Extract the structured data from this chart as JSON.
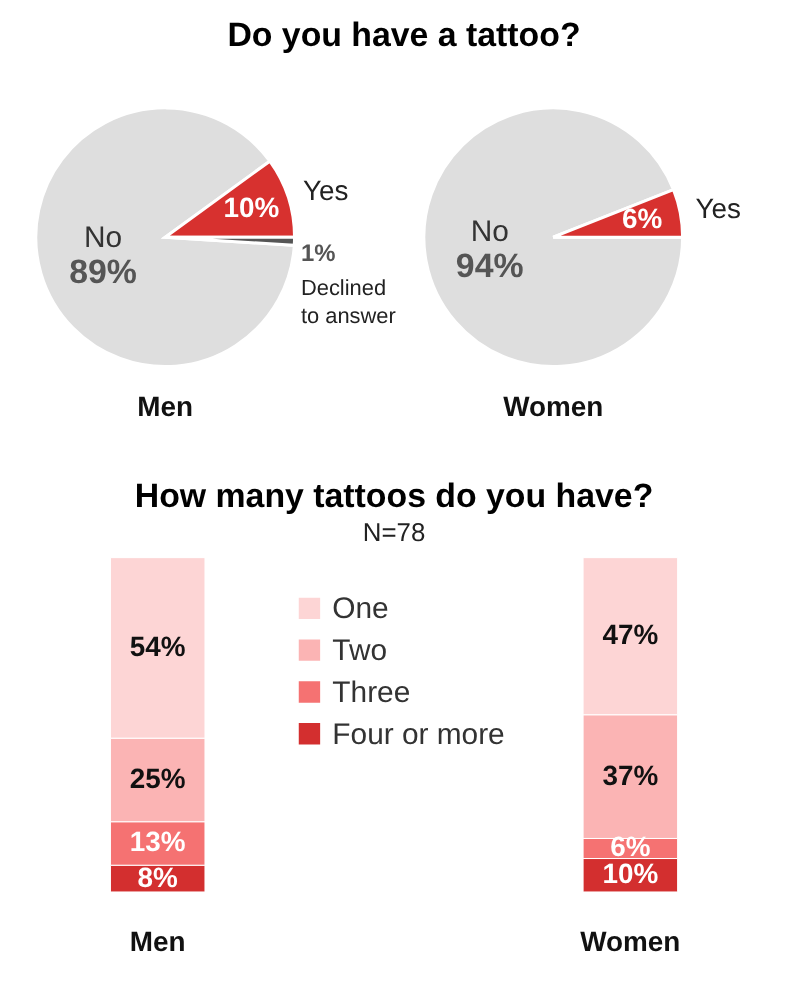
{
  "chart_data": [
    {
      "type": "pie",
      "title": "Do you have a tattoo?",
      "xlabel": "Men",
      "categories": [
        "No",
        "Yes",
        "Declined to answer"
      ],
      "values": [
        89,
        10,
        1
      ],
      "colors": [
        "#dedede",
        "#d7312f",
        "#555555"
      ],
      "value_labels": [
        "89%",
        "10%",
        "1%"
      ]
    },
    {
      "type": "pie",
      "xlabel": "Women",
      "categories": [
        "No",
        "Yes"
      ],
      "values": [
        94,
        6
      ],
      "colors": [
        "#dedede",
        "#d7312f"
      ],
      "value_labels": [
        "94%",
        "6%"
      ]
    },
    {
      "type": "bar",
      "title": "How many tattoos do you have?",
      "subtitle": "N=78",
      "categories": [
        "Men",
        "Women"
      ],
      "stacked": true,
      "legend": "top",
      "series": [
        {
          "name": "Four or more",
          "color": "#d32f2f",
          "values": [
            8,
            10
          ],
          "value_labels": [
            "8%",
            "10%"
          ]
        },
        {
          "name": "Three",
          "color": "#f57272",
          "values": [
            13,
            6
          ],
          "value_labels": [
            "13%",
            "6%"
          ]
        },
        {
          "name": "Two",
          "color": "#fbb4b4",
          "values": [
            25,
            37
          ],
          "value_labels": [
            "25%",
            "37%"
          ]
        },
        {
          "name": "One",
          "color": "#fdd5d5",
          "values": [
            54,
            47
          ],
          "value_labels": [
            "54%",
            "47%"
          ]
        }
      ]
    }
  ]
}
